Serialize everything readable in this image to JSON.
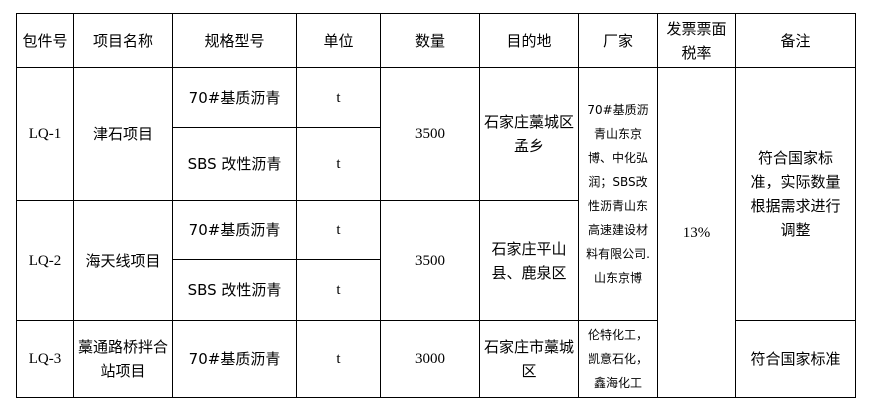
{
  "headers": [
    "包件号",
    "项目名称",
    "规格型号",
    "单位",
    "数量",
    "目的地",
    "厂家",
    "发票票面税率",
    "备注"
  ],
  "packages": [
    {
      "id": "LQ-1",
      "project": "津石项目",
      "items": [
        {
          "spec": "70#基质沥青",
          "unit": "t"
        },
        {
          "spec": "SBS 改性沥青",
          "unit": "t"
        }
      ],
      "quantity": "3500",
      "destination": "石家庄藁城区孟乡"
    },
    {
      "id": "LQ-2",
      "project": "海天线项目",
      "items": [
        {
          "spec": "70#基质沥青",
          "unit": "t"
        },
        {
          "spec": "SBS 改性沥青",
          "unit": "t"
        }
      ],
      "quantity": "3500",
      "destination": "石家庄平山县、鹿泉区"
    },
    {
      "id": "LQ-3",
      "project": "藁通路桥拌合站项目",
      "items": [
        {
          "spec": "70#基质沥青",
          "unit": "t"
        }
      ],
      "quantity": "3000",
      "destination": "石家庄市藁城区",
      "manufacturer": "伦特化工，凯意石化，鑫海化工",
      "remark": "符合国家标准"
    }
  ],
  "manufacturer_lq12": "70#基质沥青山东京博、中化弘润；SBS改性沥青山东高速建设材料有限公司.山东京博",
  "tax_rate": "13%",
  "remark_lq12": "符合国家标准，实际数量根据需求进行调整"
}
